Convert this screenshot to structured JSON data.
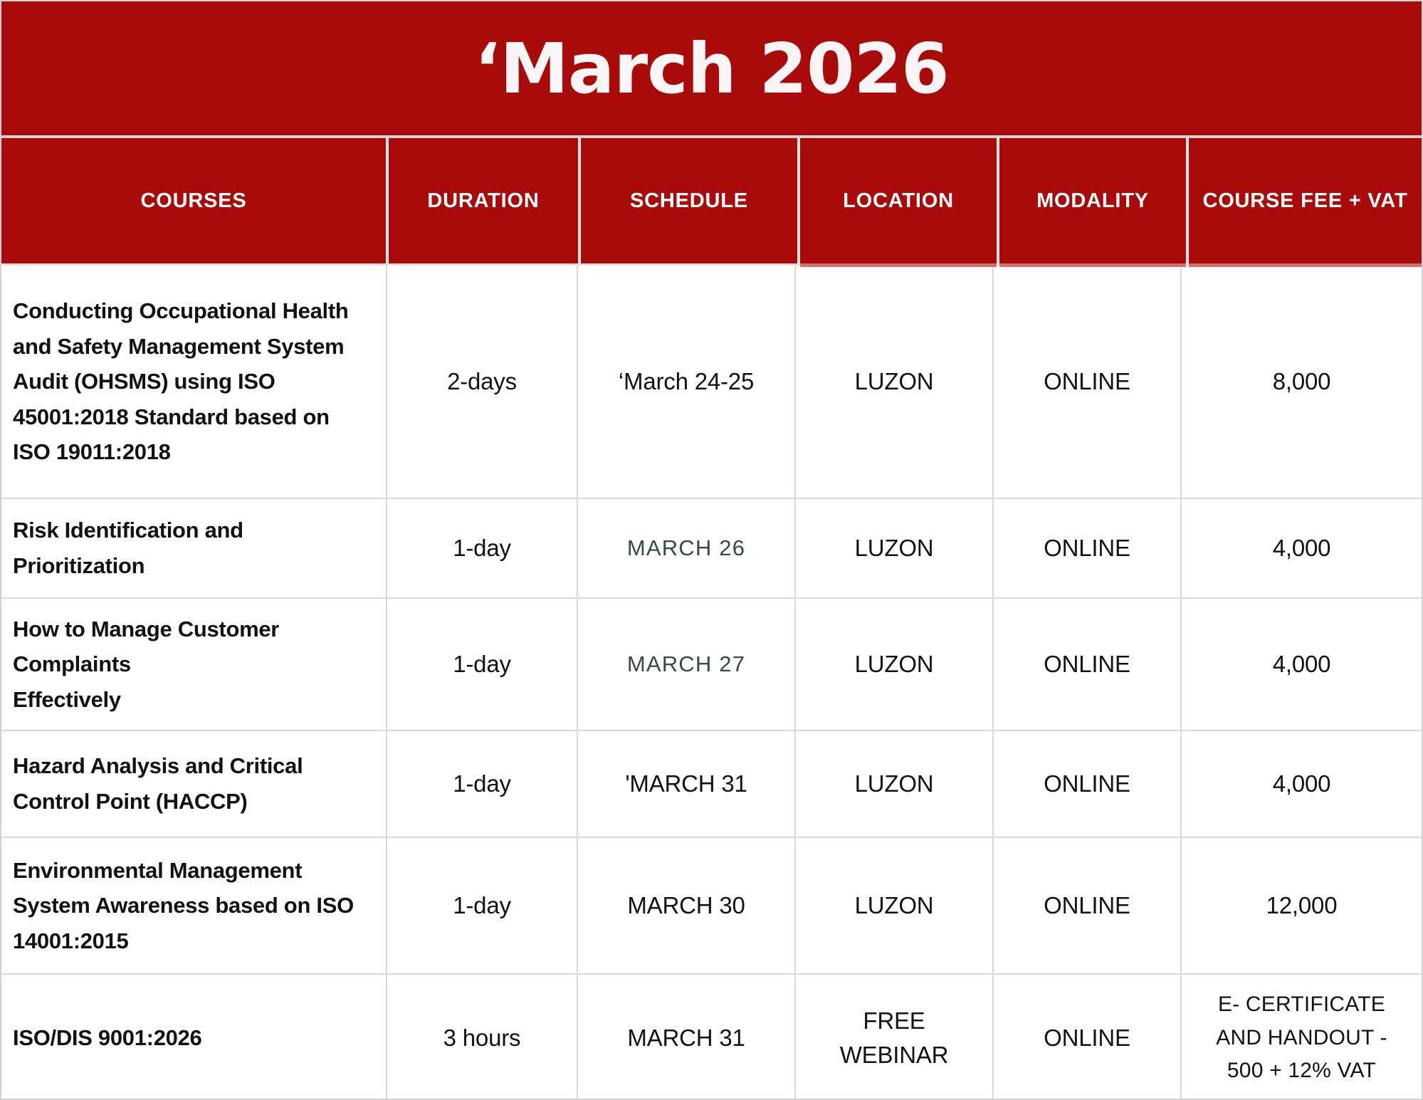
{
  "title": "‘March 2026",
  "colors": {
    "accent": "#a90a0a",
    "header_text": "#ffffff",
    "muted_schedule": "#37474f",
    "grid_line": "#d9d9d9"
  },
  "columns": [
    "COURSES",
    "DURATION",
    "SCHEDULE",
    "LOCATION",
    "MODALITY",
    "COURSE FEE + VAT"
  ],
  "rows": [
    {
      "course": "Conducting Occupational Health and Safety Management System Audit (OHSMS) using ISO 45001:2018 Standard based on ISO 19011:2018",
      "duration": "2-days",
      "schedule": "‘March 24-25",
      "location": "LUZON",
      "modality": "ONLINE",
      "fee": "8,000"
    },
    {
      "course": "Risk Identification and Prioritization",
      "duration": "1-day",
      "schedule": "MARCH 26",
      "location": "LUZON",
      "modality": "ONLINE",
      "fee": "4,000"
    },
    {
      "course": "How to Manage Customer Complaints\nEffectively",
      "duration": "1-day",
      "schedule": "MARCH 27",
      "location": "LUZON",
      "modality": "ONLINE",
      "fee": "4,000"
    },
    {
      "course": "Hazard Analysis and Critical Control Point (HACCP)",
      "duration": "1-day",
      "schedule": "'MARCH 31",
      "location": "LUZON",
      "modality": "ONLINE",
      "fee": "4,000"
    },
    {
      "course": "Environmental Management System Awareness based on ISO 14001:2015",
      "duration": "1-day",
      "schedule": "MARCH 30",
      "location": "LUZON",
      "modality": "ONLINE",
      "fee": "12,000"
    },
    {
      "course": "ISO/DIS 9001:2026",
      "duration": "3 hours",
      "schedule": "MARCH 31",
      "location": "FREE\nWEBINAR",
      "modality": "ONLINE",
      "fee": "E- CERTIFICATE\nAND HANDOUT -\n500 + 12% VAT"
    }
  ]
}
